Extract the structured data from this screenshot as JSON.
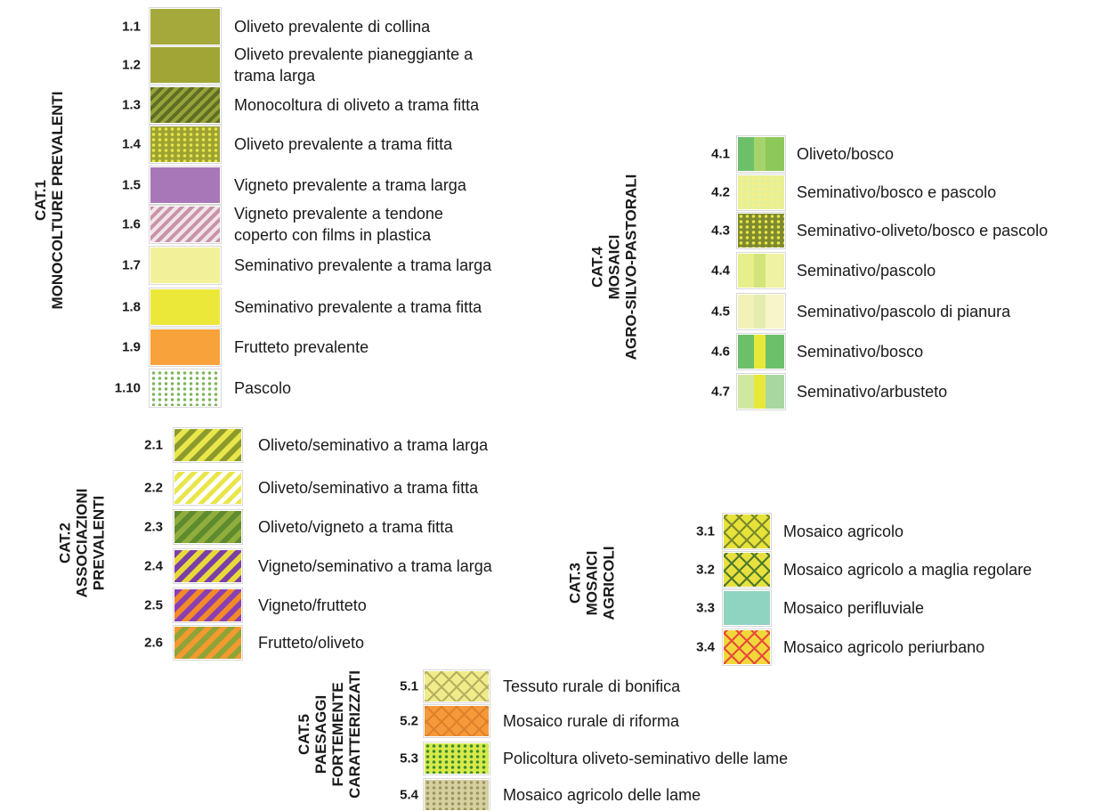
{
  "categories": [
    {
      "title": [
        "CAT.1",
        "MONOCOLTURE PREVALENTI"
      ],
      "items": [
        {
          "code": "1.1",
          "label": [
            "Oliveto prevalente di collina"
          ]
        },
        {
          "code": "1.2",
          "label": [
            "Oliveto prevalente pianeggiante a",
            "trama larga"
          ]
        },
        {
          "code": "1.3",
          "label": [
            "Monocoltura di oliveto a trama fitta"
          ]
        },
        {
          "code": "1.4",
          "label": [
            "Oliveto prevalente a trama fitta"
          ]
        },
        {
          "code": "1.5",
          "label": [
            "Vigneto prevalente a trama larga"
          ]
        },
        {
          "code": "1.6",
          "label": [
            "Vigneto prevalente a tendone",
            "coperto con films in plastica"
          ]
        },
        {
          "code": "1.7",
          "label": [
            "Seminativo prevalente a trama larga"
          ]
        },
        {
          "code": "1.8",
          "label": [
            "Seminativo prevalente a trama fitta"
          ]
        },
        {
          "code": "1.9",
          "label": [
            "Frutteto prevalente"
          ]
        },
        {
          "code": "1.10",
          "label": [
            "Pascolo"
          ]
        }
      ]
    },
    {
      "title": [
        "CAT.2",
        "ASSOCIAZIONI",
        "PREVALENTI"
      ],
      "items": [
        {
          "code": "2.1",
          "label": [
            "Oliveto/seminativo a trama larga"
          ]
        },
        {
          "code": "2.2",
          "label": [
            "Oliveto/seminativo a trama fitta"
          ]
        },
        {
          "code": "2.3",
          "label": [
            "Oliveto/vigneto a trama fitta"
          ]
        },
        {
          "code": "2.4",
          "label": [
            "Vigneto/seminativo a trama larga"
          ]
        },
        {
          "code": "2.5",
          "label": [
            "Vigneto/frutteto"
          ]
        },
        {
          "code": "2.6",
          "label": [
            "Frutteto/oliveto"
          ]
        }
      ]
    },
    {
      "title": [
        "CAT.4",
        "MOSAICI",
        "AGRO-SILVO-PASTORALI"
      ],
      "items": [
        {
          "code": "4.1",
          "label": [
            "Oliveto/bosco"
          ]
        },
        {
          "code": "4.2",
          "label": [
            "Seminativo/bosco e pascolo"
          ]
        },
        {
          "code": "4.3",
          "label": [
            "Seminativo-oliveto/bosco e pascolo"
          ]
        },
        {
          "code": "4.4",
          "label": [
            "Seminativo/pascolo"
          ]
        },
        {
          "code": "4.5",
          "label": [
            "Seminativo/pascolo di pianura"
          ]
        },
        {
          "code": "4.6",
          "label": [
            "Seminativo/bosco"
          ]
        },
        {
          "code": "4.7",
          "label": [
            "Seminativo/arbusteto"
          ]
        }
      ]
    },
    {
      "title": [
        "CAT.3",
        "MOSAICI",
        "AGRICOLI"
      ],
      "items": [
        {
          "code": "3.1",
          "label": [
            "Mosaico agricolo"
          ]
        },
        {
          "code": "3.2",
          "label": [
            "Mosaico agricolo a maglia regolare"
          ]
        },
        {
          "code": "3.3",
          "label": [
            "Mosaico perifluviale"
          ]
        },
        {
          "code": "3.4",
          "label": [
            "Mosaico agricolo periurbano"
          ]
        }
      ]
    },
    {
      "title": [
        "CAT.5",
        "PAESAGGI",
        "FORTEMENTE",
        "CARATTERIZZATI"
      ],
      "items": [
        {
          "code": "5.1",
          "label": [
            "Tessuto rurale di bonifica"
          ]
        },
        {
          "code": "5.2",
          "label": [
            "Mosaico rurale di riforma"
          ]
        },
        {
          "code": "5.3",
          "label": [
            "Policoltura oliveto-seminativo delle lame"
          ]
        },
        {
          "code": "5.4",
          "label": [
            "Mosaico agricolo delle lame"
          ]
        }
      ]
    }
  ]
}
